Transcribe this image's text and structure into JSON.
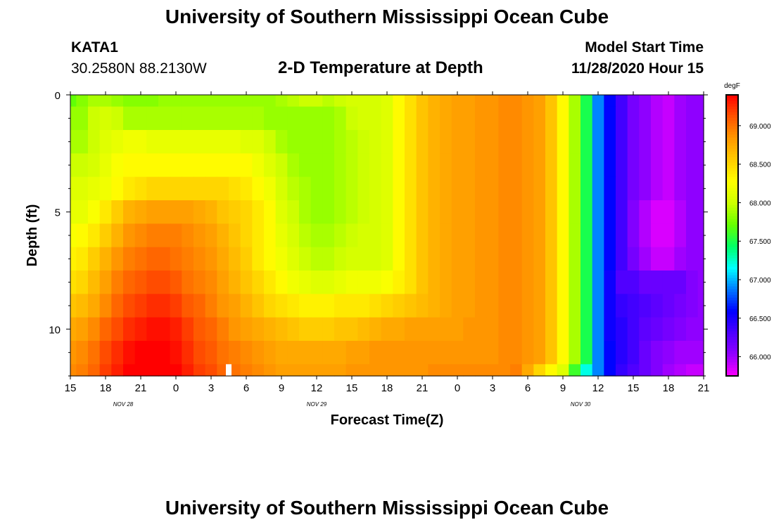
{
  "header": {
    "title": "University of Southern Mississippi Ocean Cube",
    "station_id": "KATA1",
    "coordinates": "30.2580N 88.2130W",
    "subtitle": "2-D Temperature at Depth",
    "model_start_label": "Model Start Time",
    "model_start_value": "11/28/2020 Hour 15"
  },
  "footer": {
    "title": "University of Southern Mississippi Ocean Cube"
  },
  "chart_data": {
    "type": "heatmap",
    "title": "2-D Temperature at Depth",
    "xlabel": "Forecast Time(Z)",
    "ylabel": "Depth (ft)",
    "x_hours": [
      0,
      1,
      2,
      3,
      4,
      5,
      6,
      7,
      8,
      9,
      10,
      11,
      12,
      13,
      14,
      15,
      16,
      17,
      18,
      19,
      20,
      21,
      22,
      23,
      24,
      25,
      26,
      27,
      28,
      29,
      30,
      31,
      32,
      33,
      34,
      35,
      36,
      37,
      38,
      39,
      40,
      41,
      42,
      43,
      44,
      45,
      46,
      47,
      48,
      49,
      50,
      51,
      52,
      53,
      54
    ],
    "xlim_hours": [
      0,
      54
    ],
    "x_tick_labels": [
      "15",
      "18",
      "21",
      "0",
      "3",
      "6",
      "9",
      "12",
      "15",
      "18",
      "21",
      "0",
      "3",
      "6",
      "9",
      "12",
      "15",
      "18",
      "21"
    ],
    "date_labels": [
      {
        "label": "NOV  28",
        "hour": 4.5
      },
      {
        "label": "NOV  29",
        "hour": 21
      },
      {
        "label": "NOV  30",
        "hour": 43.5
      }
    ],
    "depths_ft": [
      0,
      1,
      2,
      3,
      4,
      5,
      6,
      7,
      8,
      9,
      10,
      11,
      12
    ],
    "ylim": [
      0,
      12
    ],
    "y_tick_labels": [
      "0",
      "5",
      "10"
    ],
    "y_ticks": [
      0,
      5,
      10
    ],
    "colorbar": {
      "unit": "degF",
      "min": 65.75,
      "max": 69.4,
      "tick_values": [
        69,
        68.5,
        68,
        67.5,
        67,
        66.5,
        66
      ],
      "tick_labels": [
        "69.000",
        "68.500",
        "68.000",
        "67.500",
        "67.000",
        "66.500",
        "66.000"
      ],
      "colors": [
        "#ff00ff",
        "#9400ff",
        "#4d00ff",
        "#0000ff",
        "#0077ff",
        "#00ffff",
        "#00ff66",
        "#66ff00",
        "#ccff00",
        "#ffff00",
        "#ffcc00",
        "#ff9900",
        "#ff5500",
        "#ff0000"
      ]
    },
    "temperature_degF": [
      [
        67.7,
        67.8,
        67.9,
        67.9,
        67.85,
        67.8,
        67.8,
        67.8,
        67.85,
        67.85,
        67.85,
        67.85,
        67.85,
        67.85,
        67.85,
        67.85,
        67.85,
        67.85,
        67.9,
        67.95,
        68.0,
        68.0,
        67.95,
        68.0,
        68.05,
        68.05,
        68.05,
        68.1,
        68.3,
        68.45,
        68.6,
        68.7,
        68.75,
        68.8,
        68.8,
        68.85,
        68.85,
        68.9,
        68.9,
        68.85,
        68.8,
        68.6,
        68.3,
        67.9,
        67.5,
        66.9,
        66.6,
        66.35,
        66.15,
        66.05,
        65.95,
        65.9,
        66.0,
        66.05,
        66.05
      ],
      [
        67.85,
        67.85,
        68.0,
        68.05,
        68.0,
        67.9,
        67.9,
        67.9,
        67.9,
        67.9,
        67.9,
        67.9,
        67.9,
        67.9,
        67.9,
        67.9,
        67.9,
        67.85,
        67.85,
        67.85,
        67.85,
        67.85,
        67.85,
        67.9,
        68.0,
        68.05,
        68.05,
        68.1,
        68.3,
        68.45,
        68.6,
        68.7,
        68.75,
        68.8,
        68.8,
        68.85,
        68.85,
        68.9,
        68.9,
        68.85,
        68.8,
        68.6,
        68.3,
        67.9,
        67.5,
        66.9,
        66.6,
        66.35,
        66.15,
        66.05,
        65.95,
        65.9,
        66.0,
        66.05,
        66.05
      ],
      [
        67.9,
        67.9,
        68.0,
        68.1,
        68.15,
        68.2,
        68.2,
        68.15,
        68.15,
        68.15,
        68.15,
        68.15,
        68.15,
        68.15,
        68.15,
        68.1,
        68.1,
        68.0,
        67.9,
        67.85,
        67.85,
        67.85,
        67.85,
        67.9,
        67.95,
        68.0,
        68.05,
        68.1,
        68.3,
        68.45,
        68.6,
        68.7,
        68.75,
        68.8,
        68.8,
        68.85,
        68.85,
        68.9,
        68.9,
        68.85,
        68.8,
        68.6,
        68.3,
        67.9,
        67.5,
        66.9,
        66.6,
        66.35,
        66.15,
        66.05,
        65.95,
        65.9,
        66.0,
        66.05,
        66.05
      ],
      [
        68.0,
        68.0,
        68.05,
        68.15,
        68.25,
        68.3,
        68.3,
        68.3,
        68.3,
        68.3,
        68.3,
        68.3,
        68.3,
        68.3,
        68.3,
        68.3,
        68.2,
        68.1,
        68.0,
        67.9,
        67.85,
        67.85,
        67.85,
        67.9,
        67.95,
        68.0,
        68.05,
        68.1,
        68.3,
        68.45,
        68.6,
        68.7,
        68.75,
        68.8,
        68.8,
        68.85,
        68.85,
        68.9,
        68.9,
        68.85,
        68.8,
        68.6,
        68.3,
        67.9,
        67.5,
        66.9,
        66.6,
        66.35,
        66.15,
        66.05,
        65.95,
        65.9,
        66.0,
        66.05,
        66.05
      ],
      [
        68.1,
        68.1,
        68.15,
        68.2,
        68.3,
        68.4,
        68.45,
        68.5,
        68.5,
        68.5,
        68.5,
        68.5,
        68.5,
        68.5,
        68.45,
        68.4,
        68.3,
        68.2,
        68.05,
        67.95,
        67.9,
        67.85,
        67.85,
        67.9,
        67.95,
        68.0,
        68.05,
        68.1,
        68.3,
        68.45,
        68.6,
        68.7,
        68.75,
        68.8,
        68.8,
        68.85,
        68.85,
        68.9,
        68.9,
        68.85,
        68.8,
        68.6,
        68.3,
        67.9,
        67.5,
        66.9,
        66.6,
        66.35,
        66.15,
        66.05,
        65.95,
        65.9,
        66.0,
        66.05,
        66.05
      ],
      [
        68.15,
        68.15,
        68.25,
        68.4,
        68.55,
        68.7,
        68.75,
        68.8,
        68.8,
        68.8,
        68.8,
        68.75,
        68.7,
        68.6,
        68.55,
        68.5,
        68.4,
        68.3,
        68.1,
        68.0,
        67.9,
        67.85,
        67.85,
        67.9,
        67.95,
        68.0,
        68.05,
        68.1,
        68.3,
        68.45,
        68.6,
        68.7,
        68.75,
        68.8,
        68.8,
        68.85,
        68.85,
        68.9,
        68.9,
        68.85,
        68.8,
        68.6,
        68.3,
        67.9,
        67.5,
        66.9,
        66.6,
        66.35,
        66.1,
        65.95,
        65.85,
        65.85,
        65.95,
        66.05,
        66.05
      ],
      [
        68.25,
        68.3,
        68.4,
        68.55,
        68.7,
        68.85,
        68.9,
        68.95,
        68.95,
        68.95,
        68.9,
        68.85,
        68.8,
        68.7,
        68.6,
        68.5,
        68.4,
        68.3,
        68.15,
        68.05,
        67.95,
        67.9,
        67.9,
        67.95,
        68.0,
        68.05,
        68.05,
        68.1,
        68.3,
        68.45,
        68.6,
        68.7,
        68.75,
        68.8,
        68.8,
        68.85,
        68.85,
        68.9,
        68.9,
        68.85,
        68.8,
        68.6,
        68.3,
        67.9,
        67.5,
        66.9,
        66.6,
        66.35,
        66.1,
        65.95,
        65.85,
        65.85,
        65.95,
        66.05,
        66.05
      ],
      [
        68.35,
        68.4,
        68.55,
        68.7,
        68.85,
        68.95,
        69.0,
        69.05,
        69.05,
        69.0,
        68.95,
        68.9,
        68.85,
        68.75,
        68.65,
        68.55,
        68.4,
        68.3,
        68.2,
        68.1,
        68.0,
        67.95,
        67.95,
        68.0,
        68.05,
        68.05,
        68.05,
        68.1,
        68.3,
        68.45,
        68.6,
        68.7,
        68.75,
        68.8,
        68.8,
        68.85,
        68.85,
        68.9,
        68.9,
        68.85,
        68.8,
        68.6,
        68.3,
        67.9,
        67.5,
        66.9,
        66.6,
        66.35,
        66.15,
        66.0,
        65.9,
        65.9,
        66.0,
        66.05,
        66.05
      ],
      [
        68.45,
        68.5,
        68.65,
        68.8,
        68.95,
        69.05,
        69.1,
        69.15,
        69.15,
        69.1,
        69.0,
        68.95,
        68.9,
        68.8,
        68.7,
        68.6,
        68.5,
        68.4,
        68.3,
        68.2,
        68.15,
        68.1,
        68.1,
        68.15,
        68.2,
        68.2,
        68.2,
        68.25,
        68.35,
        68.45,
        68.6,
        68.7,
        68.75,
        68.8,
        68.8,
        68.85,
        68.85,
        68.9,
        68.9,
        68.85,
        68.8,
        68.6,
        68.3,
        67.9,
        67.5,
        66.9,
        66.55,
        66.3,
        66.3,
        66.2,
        66.2,
        66.2,
        66.2,
        66.1,
        66.05
      ],
      [
        68.6,
        68.65,
        68.75,
        68.9,
        69.05,
        69.15,
        69.2,
        69.25,
        69.25,
        69.2,
        69.1,
        69.05,
        68.95,
        68.85,
        68.8,
        68.7,
        68.6,
        68.5,
        68.45,
        68.4,
        68.35,
        68.35,
        68.35,
        68.4,
        68.4,
        68.4,
        68.45,
        68.5,
        68.55,
        68.6,
        68.65,
        68.7,
        68.75,
        68.8,
        68.8,
        68.85,
        68.85,
        68.9,
        68.9,
        68.85,
        68.8,
        68.6,
        68.3,
        67.9,
        67.5,
        66.9,
        66.55,
        66.4,
        66.35,
        66.3,
        66.25,
        66.2,
        66.15,
        66.1,
        66.05
      ],
      [
        68.75,
        68.8,
        68.9,
        69.05,
        69.15,
        69.25,
        69.3,
        69.35,
        69.35,
        69.3,
        69.2,
        69.1,
        69.05,
        68.95,
        68.85,
        68.8,
        68.75,
        68.7,
        68.65,
        68.6,
        68.55,
        68.55,
        68.55,
        68.6,
        68.6,
        68.65,
        68.7,
        68.75,
        68.75,
        68.8,
        68.8,
        68.8,
        68.8,
        68.8,
        68.85,
        68.85,
        68.85,
        68.9,
        68.9,
        68.85,
        68.8,
        68.6,
        68.3,
        67.9,
        67.5,
        66.9,
        66.55,
        66.45,
        66.35,
        66.25,
        66.2,
        66.15,
        66.1,
        66.05,
        66.05
      ],
      [
        68.85,
        68.9,
        69.0,
        69.15,
        69.25,
        69.35,
        69.4,
        69.4,
        69.4,
        69.35,
        69.25,
        69.15,
        69.1,
        69.0,
        68.95,
        68.9,
        68.85,
        68.8,
        68.75,
        68.75,
        68.75,
        68.75,
        68.75,
        68.75,
        68.8,
        68.8,
        68.85,
        68.85,
        68.85,
        68.85,
        68.85,
        68.85,
        68.85,
        68.85,
        68.85,
        68.85,
        68.85,
        68.9,
        68.9,
        68.85,
        68.8,
        68.6,
        68.3,
        67.9,
        67.5,
        66.9,
        66.6,
        66.45,
        66.35,
        66.2,
        66.1,
        66.05,
        66.0,
        66.0,
        66.0
      ],
      [
        68.9,
        68.95,
        69.05,
        69.2,
        69.3,
        69.4,
        69.4,
        69.4,
        69.4,
        69.4,
        69.3,
        69.2,
        69.15,
        69.05,
        69.0,
        68.95,
        68.9,
        68.85,
        68.8,
        68.8,
        68.8,
        68.8,
        68.8,
        68.8,
        68.85,
        68.85,
        68.85,
        68.85,
        68.85,
        68.85,
        68.85,
        68.9,
        68.9,
        68.9,
        68.9,
        68.9,
        68.9,
        68.9,
        68.95,
        68.75,
        68.5,
        68.3,
        68.1,
        67.6,
        67.2,
        66.9,
        66.6,
        66.4,
        66.3,
        66.2,
        66.1,
        66.0,
        65.95,
        65.9,
        65.9
      ]
    ],
    "marker": {
      "hour": 13.5,
      "depth_ft": 11.8
    }
  }
}
